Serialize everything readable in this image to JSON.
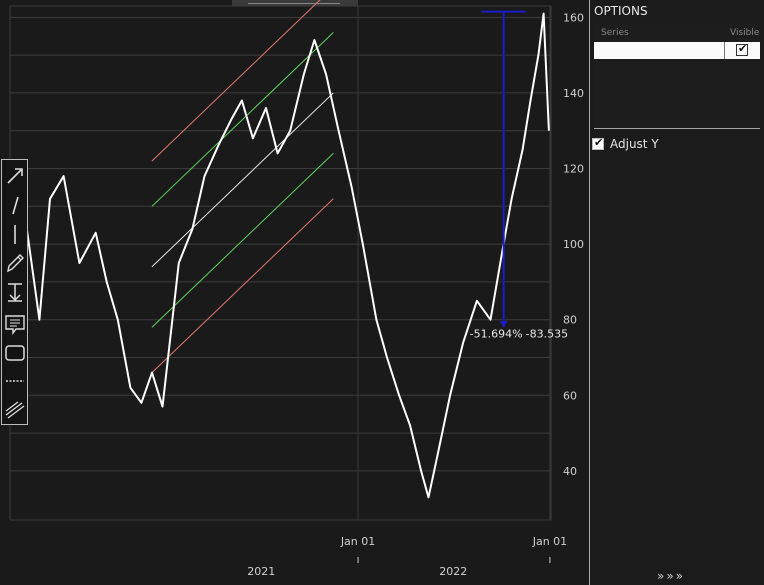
{
  "chart_data": {
    "type": "line",
    "title": "",
    "xlabel": "",
    "ylabel": "",
    "x_range": [
      "2020-03-10",
      "2023-01-03"
    ],
    "ylim": [
      27,
      163
    ],
    "yticks": [
      40,
      60,
      80,
      100,
      120,
      140,
      160
    ],
    "y_tick_labels": [
      "40",
      "60",
      "80",
      "100",
      "120",
      "140",
      "160"
    ],
    "x_tick_labels": [
      {
        "date": "2022-01-01",
        "label": "Jan 01"
      },
      {
        "date": "2023-01-01",
        "label": "Jan 01"
      }
    ],
    "year_labels": [
      {
        "date": "2021-07-01",
        "label": "2021"
      },
      {
        "date": "2022-07-01",
        "label": "2022"
      }
    ],
    "grid": true,
    "series": [
      {
        "color": "#ffffff",
        "x": [
          "2020-03-10",
          "2020-04-10",
          "2020-05-05",
          "2020-05-25",
          "2020-06-20",
          "2020-07-20",
          "2020-08-20",
          "2020-09-10",
          "2020-10-01",
          "2020-10-25",
          "2020-11-15",
          "2020-12-05",
          "2020-12-25",
          "2021-01-25",
          "2021-02-20",
          "2021-03-15",
          "2021-04-10",
          "2021-05-05",
          "2021-05-25",
          "2021-06-15",
          "2021-07-10",
          "2021-08-01",
          "2021-08-25",
          "2021-09-20",
          "2021-10-10",
          "2021-11-01",
          "2021-11-25",
          "2021-12-20",
          "2022-01-10",
          "2022-02-05",
          "2022-02-25",
          "2022-03-20",
          "2022-04-10",
          "2022-05-01",
          "2022-05-15",
          "2022-06-01",
          "2022-06-25",
          "2022-07-20",
          "2022-08-15",
          "2022-09-10",
          "2022-10-01",
          "2022-10-20",
          "2022-11-10",
          "2022-11-25",
          "2022-12-10",
          "2022-12-20",
          "2022-12-30"
        ],
        "y": [
          88,
          105,
          80,
          112,
          118,
          95,
          103,
          90,
          80,
          62,
          58,
          66,
          57,
          95,
          104,
          118,
          126,
          133,
          138,
          128,
          136,
          124,
          130,
          145,
          154,
          145,
          130,
          115,
          100,
          80,
          70,
          60,
          52,
          40,
          33,
          44,
          60,
          74,
          85,
          80,
          97,
          112,
          125,
          138,
          150,
          161,
          130
        ]
      }
    ]
  },
  "annotations": {
    "channel": {
      "start": [
        "2020-12-05",
        94
      ],
      "end": [
        "2021-11-15",
        140
      ],
      "offset": 16,
      "outer_offset": 28,
      "center_color": "#e8e8e8",
      "inner_color": "#5fd35f",
      "outer_color": "#e07a6e"
    },
    "measure": {
      "date": "2022-10-05",
      "from": 161.5,
      "to": 78,
      "color": "#1c1cc8",
      "percent_label": "-51.694%",
      "value_label": "-83.535"
    }
  },
  "toolbar": {
    "tools": [
      {
        "name": "arrow-tool-icon"
      },
      {
        "name": "line-tool-icon"
      },
      {
        "name": "vertical-line-tool-icon"
      },
      {
        "name": "pencil-tool-icon"
      },
      {
        "name": "measure-tool-icon"
      },
      {
        "name": "note-tool-icon"
      },
      {
        "name": "rectangle-tool-icon"
      },
      {
        "name": "horizontal-dashed-tool-icon"
      },
      {
        "name": "channel-tool-icon"
      }
    ]
  },
  "panel": {
    "title": "OPTIONS",
    "columns": [
      "Series",
      "Visible"
    ],
    "rows": [
      {
        "series": "",
        "visible": true
      }
    ],
    "adjust_y": {
      "label": "Adjust Y",
      "checked": true
    },
    "collapse_icon": "»»»",
    "collapse_icon_name": "collapse-panel-icon"
  },
  "colors": {
    "background": "#1a1a1a",
    "grid": "#3c3c3c",
    "series": "#ffffff",
    "axis_text": "#cfcfcf"
  }
}
